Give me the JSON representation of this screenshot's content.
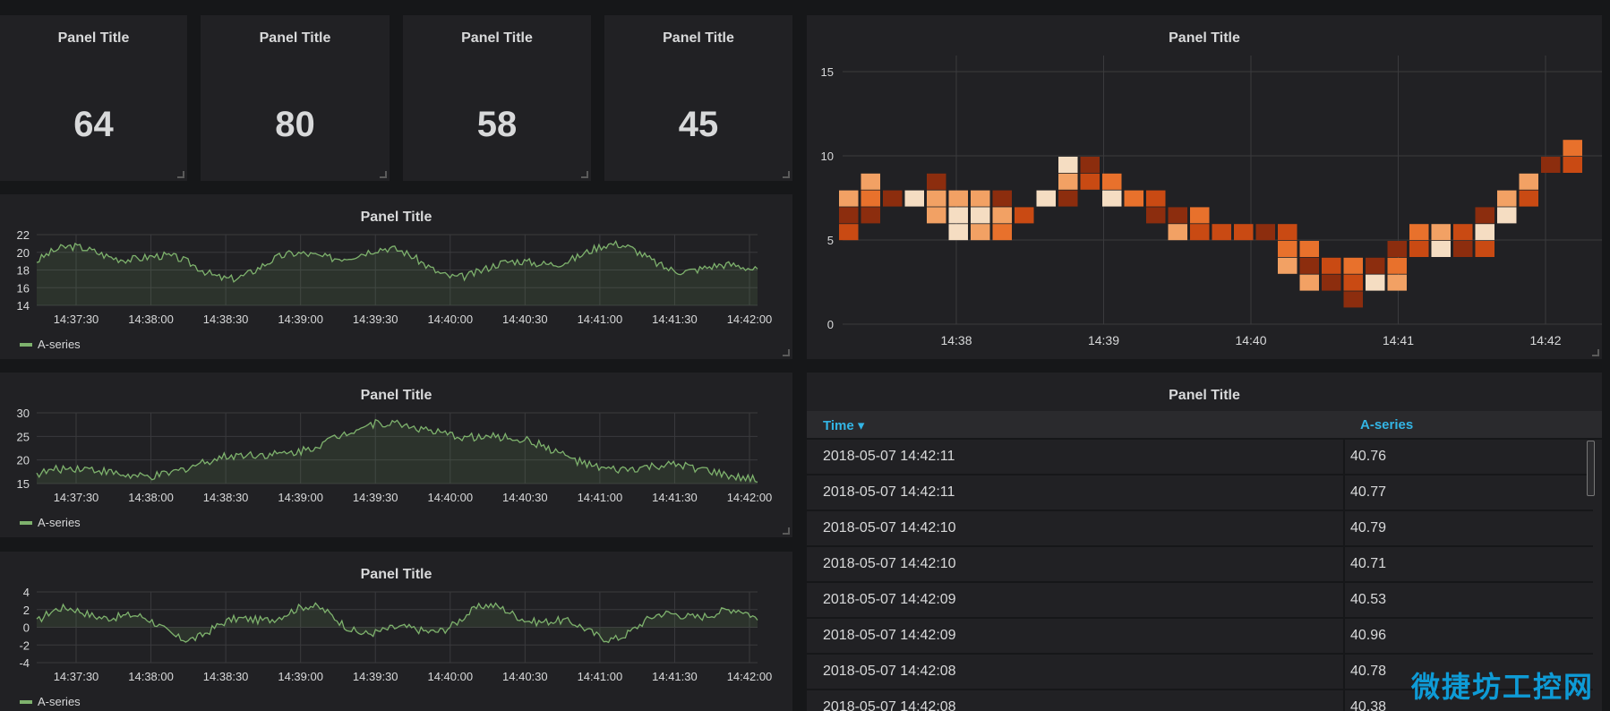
{
  "stats": [
    {
      "title": "Panel Title",
      "value": "64"
    },
    {
      "title": "Panel Title",
      "value": "80"
    },
    {
      "title": "Panel Title",
      "value": "58"
    },
    {
      "title": "Panel Title",
      "value": "45"
    }
  ],
  "graphs": [
    {
      "title": "Panel Title",
      "legend": "A-series",
      "yticks": [
        "22",
        "20",
        "18",
        "16",
        "14"
      ],
      "ylim": [
        14,
        22
      ],
      "xticks": [
        "14:37:30",
        "14:38:00",
        "14:38:30",
        "14:39:00",
        "14:39:30",
        "14:40:00",
        "14:40:30",
        "14:41:00",
        "14:41:30",
        "14:42:00"
      ]
    },
    {
      "title": "Panel Title",
      "legend": "A-series",
      "yticks": [
        "30",
        "25",
        "20",
        "15"
      ],
      "ylim": [
        15,
        30
      ],
      "xticks": [
        "14:37:30",
        "14:38:00",
        "14:38:30",
        "14:39:00",
        "14:39:30",
        "14:40:00",
        "14:40:30",
        "14:41:00",
        "14:41:30",
        "14:42:00"
      ]
    },
    {
      "title": "Panel Title",
      "legend": "A-series",
      "yticks": [
        "4",
        "2",
        "0",
        "-2",
        "-4"
      ],
      "ylim": [
        -4,
        4
      ],
      "xticks": [
        "14:37:30",
        "14:38:00",
        "14:38:30",
        "14:39:00",
        "14:39:30",
        "14:40:00",
        "14:40:30",
        "14:41:00",
        "14:41:30",
        "14:42:00"
      ]
    }
  ],
  "heatmap": {
    "title": "Panel Title",
    "yticks": [
      "15",
      "10",
      "5",
      "0"
    ],
    "xticks": [
      "14:38",
      "14:39",
      "14:40",
      "14:41",
      "14:42"
    ],
    "palette": [
      "#f5ddc2",
      "#f2a164",
      "#e8712c",
      "#c94a13",
      "#8c2d0e"
    ]
  },
  "table": {
    "title": "Panel Title",
    "col_time": "Time ▾",
    "col_value": "A-series",
    "rows": [
      {
        "time": "2018-05-07 14:42:11",
        "value": "40.76"
      },
      {
        "time": "2018-05-07 14:42:11",
        "value": "40.77"
      },
      {
        "time": "2018-05-07 14:42:10",
        "value": "40.79"
      },
      {
        "time": "2018-05-07 14:42:10",
        "value": "40.71"
      },
      {
        "time": "2018-05-07 14:42:09",
        "value": "40.53"
      },
      {
        "time": "2018-05-07 14:42:09",
        "value": "40.96"
      },
      {
        "time": "2018-05-07 14:42:08",
        "value": "40.78"
      },
      {
        "time": "2018-05-07 14:42:08",
        "value": "40.38"
      }
    ]
  },
  "watermark": "微捷坊工控网",
  "colors": {
    "series": "#7eb26d",
    "table_header": "#33b5e5",
    "panel_bg": "#212124",
    "page_bg": "#161719"
  }
}
